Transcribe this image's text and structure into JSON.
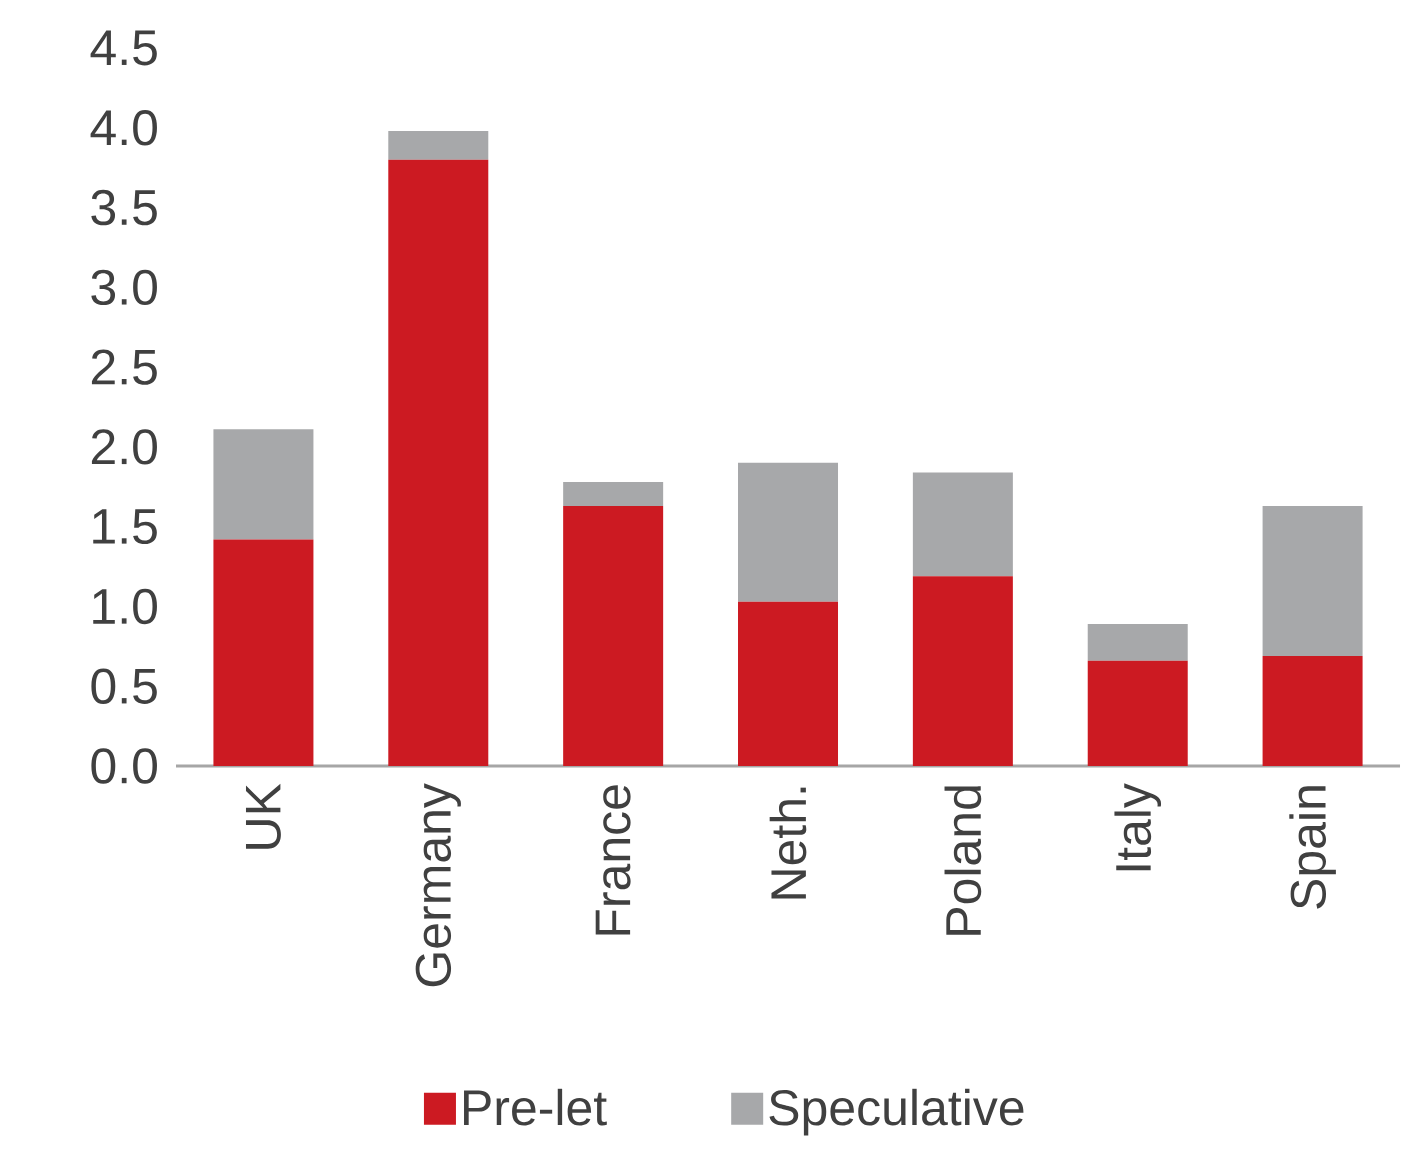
{
  "chart_data": {
    "type": "bar",
    "stacked": true,
    "legend": "bottom",
    "categories": [
      "UK",
      "Germany",
      "France",
      "Neth.",
      "Poland",
      "Italy",
      "Spain"
    ],
    "series": [
      {
        "name": "Pre-let",
        "color": "#cc1a22",
        "values": [
          1.42,
          3.8,
          1.63,
          1.03,
          1.19,
          0.66,
          0.69
        ]
      },
      {
        "name": "Speculative",
        "color": "#a7a8aa",
        "values": [
          0.69,
          0.18,
          0.15,
          0.87,
          0.65,
          0.23,
          0.94
        ]
      }
    ],
    "ylim": [
      0,
      4.5
    ],
    "yticks": [
      {
        "value": 0,
        "label": "0.0"
      },
      {
        "value": 0.5,
        "label": "0.5"
      },
      {
        "value": 1,
        "label": "1.0"
      },
      {
        "value": 1.5,
        "label": "1.5"
      },
      {
        "value": 2,
        "label": "2.0"
      },
      {
        "value": 2.5,
        "label": "2.5"
      },
      {
        "value": 3,
        "label": "3.0"
      },
      {
        "value": 3.5,
        "label": "3.5"
      },
      {
        "value": 4,
        "label": "4.0"
      },
      {
        "value": 4.5,
        "label": "4.5"
      }
    ]
  }
}
